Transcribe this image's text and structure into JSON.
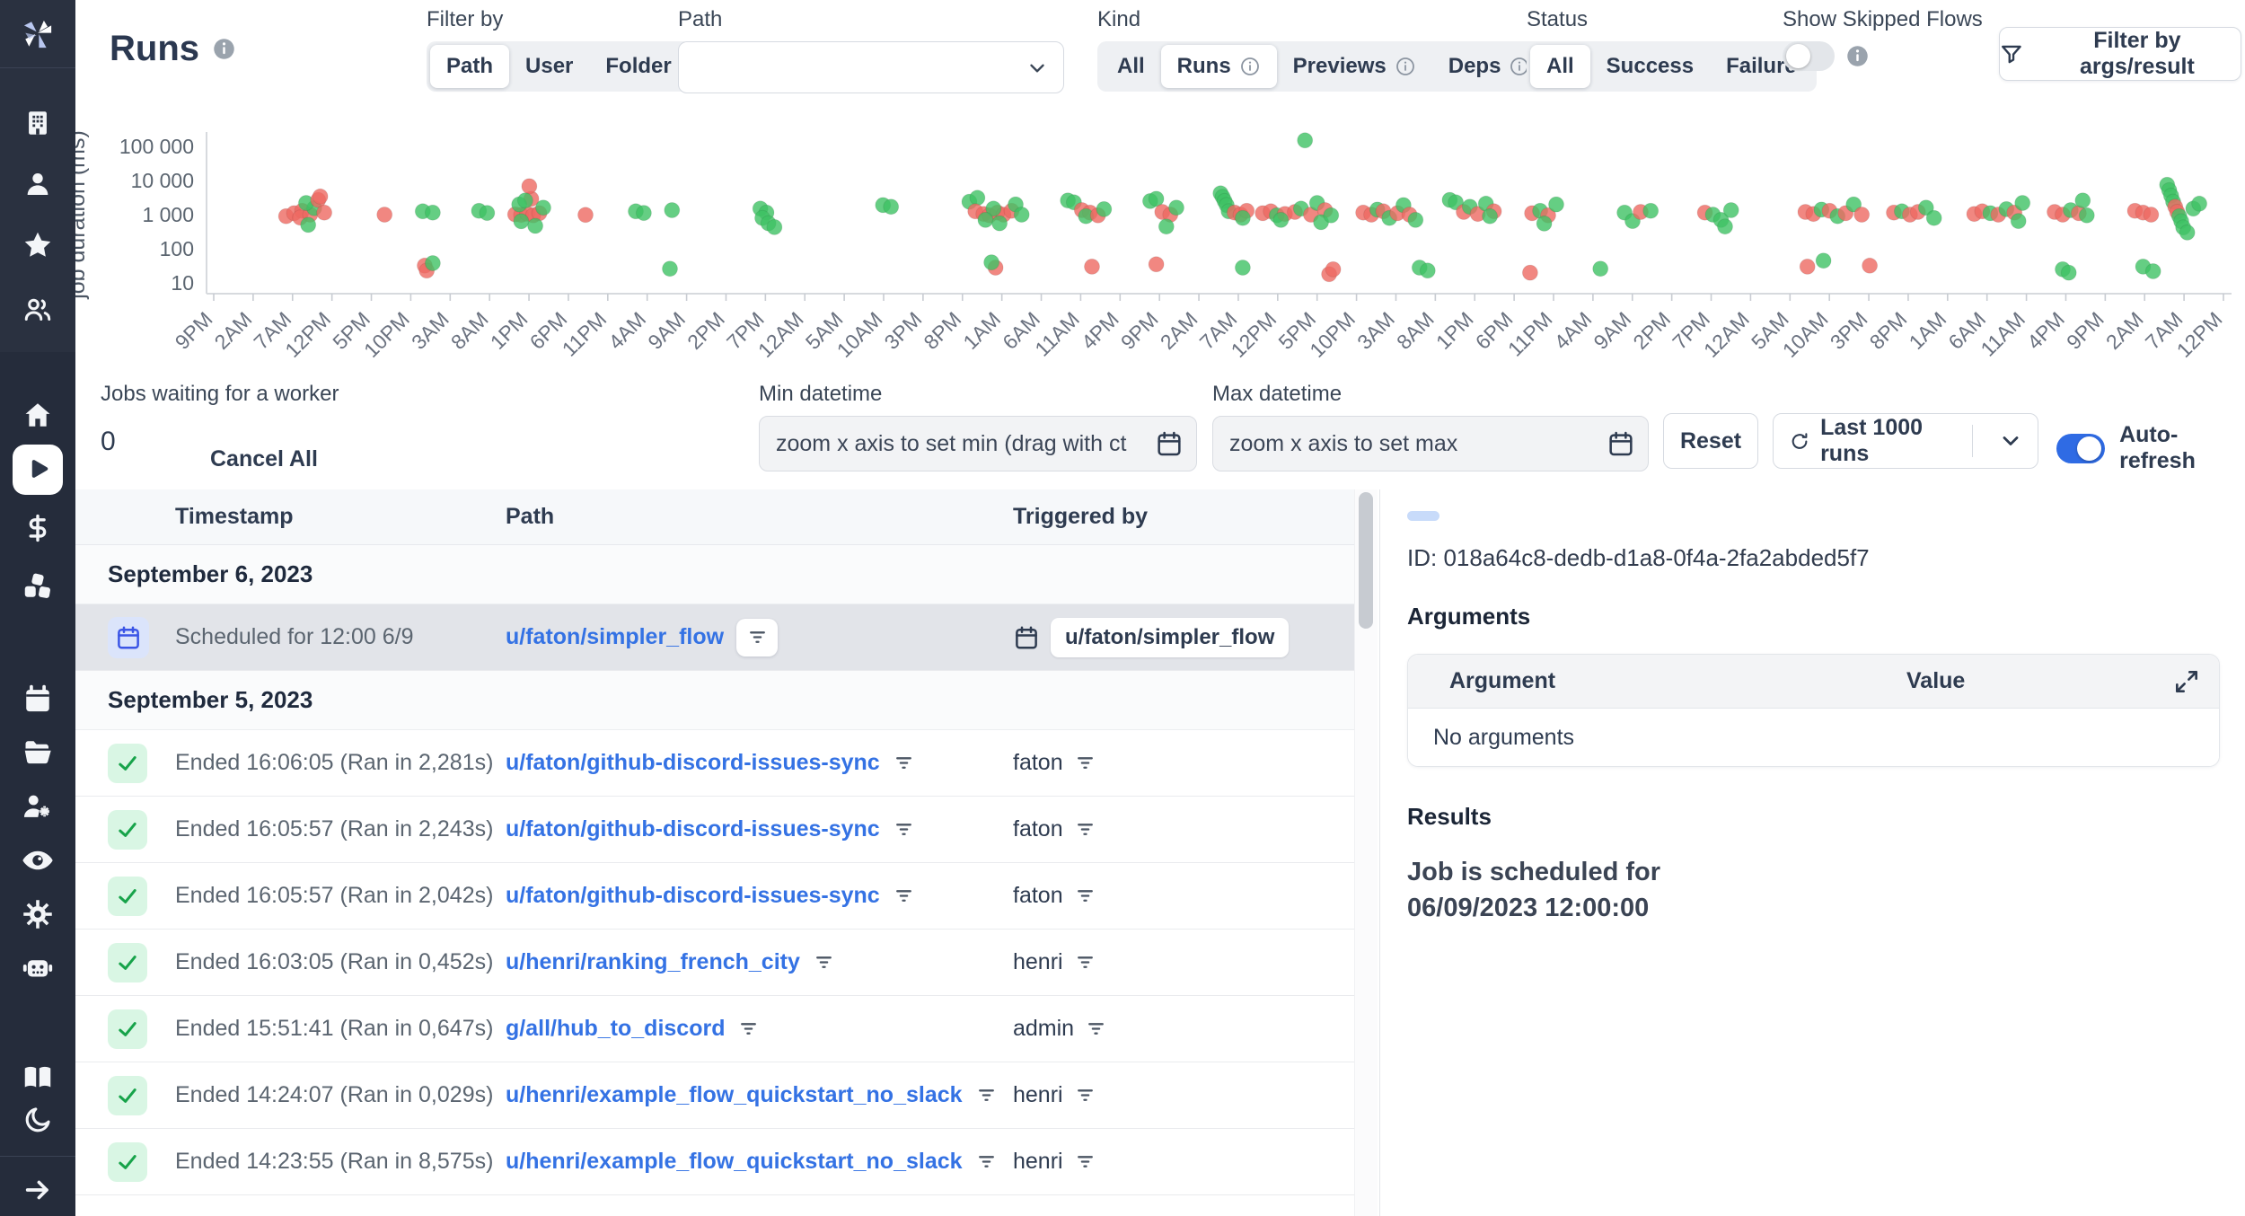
{
  "header": {
    "title": "Runs",
    "filter_by": {
      "label": "Filter by",
      "options": [
        "Path",
        "User",
        "Folder"
      ],
      "selected": "Path"
    },
    "path_filter": {
      "label": "Path",
      "value": ""
    },
    "kind": {
      "label": "Kind",
      "options": [
        "All",
        "Runs",
        "Previews",
        "Deps"
      ],
      "selected": "Runs",
      "options_with_info": [
        "Runs",
        "Previews",
        "Deps"
      ]
    },
    "status": {
      "label": "Status",
      "options": [
        "All",
        "Success",
        "Failure"
      ],
      "selected": "All"
    },
    "skipped": {
      "label": "Show Skipped Flows",
      "enabled": false
    },
    "filter_args_label": "Filter by args/result"
  },
  "queue": {
    "label": "Jobs waiting for a worker",
    "count": "0",
    "cancel_all_label": "Cancel All"
  },
  "controls": {
    "min_label": "Min datetime",
    "min_value": "zoom x axis to set min (drag with ct",
    "max_label": "Max datetime",
    "max_value": "zoom x axis to set max",
    "reset_label": "Reset",
    "last_runs_label": "Last 1000 runs",
    "auto_refresh_label": "Auto-refresh"
  },
  "chart_data": {
    "type": "scatter",
    "ylabel": "job duration (ms)",
    "yscale": "log",
    "ytick_labels": [
      "10",
      "100",
      "1 000",
      "10 000",
      "100 000"
    ],
    "ytick_values": [
      10,
      100,
      1000,
      10000,
      100000
    ],
    "ylim": [
      10,
      200000
    ],
    "grid": false,
    "legend": "none",
    "series": [
      {
        "name": "success",
        "color": "#3fc264"
      },
      {
        "name": "failure",
        "color": "#ee6962"
      }
    ],
    "x_labels": [
      "9PM",
      "2AM",
      "7AM",
      "12PM",
      "5PM",
      "10PM",
      "3AM",
      "8AM",
      "1PM",
      "6PM",
      "11PM",
      "4AM",
      "9AM",
      "2PM",
      "7PM",
      "12AM",
      "5AM",
      "10AM",
      "3PM",
      "8PM",
      "1AM",
      "6AM",
      "11AM",
      "4PM",
      "9PM",
      "2AM",
      "7AM",
      "12PM",
      "5PM",
      "10PM",
      "3AM",
      "8AM",
      "1PM",
      "6PM",
      "11PM",
      "4AM",
      "9AM",
      "2PM",
      "7PM",
      "12AM",
      "5AM",
      "10AM",
      "3PM",
      "8PM",
      "1AM",
      "6AM",
      "11AM",
      "4PM",
      "9PM",
      "2AM",
      "7AM",
      "12PM"
    ],
    "points": [
      [
        0.036,
        900,
        "f"
      ],
      [
        0.04,
        1100,
        "f"
      ],
      [
        0.044,
        1300,
        "f"
      ],
      [
        0.043,
        820,
        "f"
      ],
      [
        0.048,
        1000,
        "f"
      ],
      [
        0.05,
        1550,
        "s"
      ],
      [
        0.046,
        2200,
        "s"
      ],
      [
        0.052,
        2700,
        "f"
      ],
      [
        0.055,
        1150,
        "f"
      ],
      [
        0.047,
        500,
        "s"
      ],
      [
        0.053,
        3400,
        "f"
      ],
      [
        0.085,
        1000,
        "f"
      ],
      [
        0.104,
        1250,
        "s"
      ],
      [
        0.109,
        1150,
        "s"
      ],
      [
        0.105,
        32,
        "f"
      ],
      [
        0.106,
        23,
        "f"
      ],
      [
        0.109,
        38,
        "s"
      ],
      [
        0.132,
        1300,
        "s"
      ],
      [
        0.136,
        1120,
        "s"
      ],
      [
        0.15,
        1020,
        "f"
      ],
      [
        0.153,
        980,
        "f"
      ],
      [
        0.156,
        1060,
        "f"
      ],
      [
        0.159,
        950,
        "f"
      ],
      [
        0.162,
        1100,
        "f"
      ],
      [
        0.158,
        2900,
        "f"
      ],
      [
        0.157,
        6800,
        "f"
      ],
      [
        0.152,
        2000,
        "s"
      ],
      [
        0.155,
        2600,
        "s"
      ],
      [
        0.164,
        1600,
        "s"
      ],
      [
        0.153,
        640,
        "s"
      ],
      [
        0.16,
        470,
        "s"
      ],
      [
        0.185,
        980,
        "f"
      ],
      [
        0.21,
        1250,
        "s"
      ],
      [
        0.214,
        1120,
        "s"
      ],
      [
        0.228,
        1350,
        "s"
      ],
      [
        0.227,
        26,
        "s"
      ],
      [
        0.272,
        1500,
        "s"
      ],
      [
        0.275,
        1150,
        "s"
      ],
      [
        0.273,
        800,
        "s"
      ],
      [
        0.276,
        560,
        "s"
      ],
      [
        0.279,
        430,
        "s"
      ],
      [
        0.333,
        1900,
        "s"
      ],
      [
        0.337,
        1700,
        "s"
      ],
      [
        0.376,
        2400,
        "s"
      ],
      [
        0.38,
        3100,
        "s"
      ],
      [
        0.379,
        1250,
        "f"
      ],
      [
        0.383,
        1050,
        "f"
      ],
      [
        0.386,
        950,
        "f"
      ],
      [
        0.39,
        1150,
        "f"
      ],
      [
        0.393,
        1000,
        "f"
      ],
      [
        0.388,
        1500,
        "s"
      ],
      [
        0.384,
        700,
        "s"
      ],
      [
        0.391,
        560,
        "s"
      ],
      [
        0.397,
        1300,
        "f"
      ],
      [
        0.399,
        2000,
        "s"
      ],
      [
        0.402,
        1000,
        "s"
      ],
      [
        0.389,
        28,
        "f"
      ],
      [
        0.387,
        40,
        "s"
      ],
      [
        0.425,
        2600,
        "s"
      ],
      [
        0.428,
        2300,
        "s"
      ],
      [
        0.432,
        1350,
        "f"
      ],
      [
        0.436,
        1150,
        "f"
      ],
      [
        0.434,
        900,
        "s"
      ],
      [
        0.44,
        950,
        "f"
      ],
      [
        0.443,
        1450,
        "s"
      ],
      [
        0.437,
        30,
        "f"
      ],
      [
        0.466,
        2500,
        "s"
      ],
      [
        0.469,
        2900,
        "s"
      ],
      [
        0.472,
        1200,
        "f"
      ],
      [
        0.476,
        1000,
        "f"
      ],
      [
        0.479,
        1600,
        "s"
      ],
      [
        0.474,
        450,
        "s"
      ],
      [
        0.469,
        35,
        "f"
      ],
      [
        0.501,
        4200,
        "s"
      ],
      [
        0.502,
        3300,
        "s"
      ],
      [
        0.503,
        2500,
        "s"
      ],
      [
        0.504,
        1900,
        "s"
      ],
      [
        0.505,
        1250,
        "s"
      ],
      [
        0.508,
        1150,
        "f"
      ],
      [
        0.511,
        1000,
        "f"
      ],
      [
        0.514,
        1300,
        "f"
      ],
      [
        0.512,
        800,
        "s"
      ],
      [
        0.512,
        28,
        "s"
      ],
      [
        0.522,
        1100,
        "f"
      ],
      [
        0.526,
        1250,
        "f"
      ],
      [
        0.529,
        950,
        "s"
      ],
      [
        0.533,
        1050,
        "f"
      ],
      [
        0.531,
        700,
        "s"
      ],
      [
        0.538,
        1200,
        "f"
      ],
      [
        0.541,
        1500,
        "s"
      ],
      [
        0.543,
        150000,
        "s"
      ],
      [
        0.546,
        1000,
        "f"
      ],
      [
        0.549,
        2200,
        "s"
      ],
      [
        0.553,
        1350,
        "f"
      ],
      [
        0.551,
        600,
        "s"
      ],
      [
        0.556,
        950,
        "s"
      ],
      [
        0.555,
        18,
        "f"
      ],
      [
        0.557,
        25,
        "f"
      ],
      [
        0.572,
        1150,
        "f"
      ],
      [
        0.576,
        1000,
        "f"
      ],
      [
        0.579,
        1400,
        "s"
      ],
      [
        0.582,
        1250,
        "f"
      ],
      [
        0.585,
        800,
        "s"
      ],
      [
        0.589,
        1100,
        "f"
      ],
      [
        0.592,
        1900,
        "s"
      ],
      [
        0.595,
        1000,
        "f"
      ],
      [
        0.598,
        700,
        "s"
      ],
      [
        0.6,
        28,
        "s"
      ],
      [
        0.604,
        23,
        "s"
      ],
      [
        0.615,
        2700,
        "s"
      ],
      [
        0.618,
        2300,
        "s"
      ],
      [
        0.622,
        1200,
        "f"
      ],
      [
        0.625,
        1700,
        "s"
      ],
      [
        0.629,
        1050,
        "f"
      ],
      [
        0.633,
        2100,
        "s"
      ],
      [
        0.637,
        1250,
        "f"
      ],
      [
        0.635,
        900,
        "s"
      ],
      [
        0.656,
        1100,
        "f"
      ],
      [
        0.66,
        1300,
        "s"
      ],
      [
        0.664,
        950,
        "f"
      ],
      [
        0.662,
        550,
        "s"
      ],
      [
        0.668,
        2000,
        "s"
      ],
      [
        0.655,
        20,
        "f"
      ],
      [
        0.702,
        1150,
        "s"
      ],
      [
        0.706,
        650,
        "s"
      ],
      [
        0.71,
        1200,
        "f"
      ],
      [
        0.715,
        1300,
        "s"
      ],
      [
        0.69,
        26,
        "s"
      ],
      [
        0.742,
        1150,
        "f"
      ],
      [
        0.746,
        1000,
        "s"
      ],
      [
        0.75,
        700,
        "s"
      ],
      [
        0.755,
        1350,
        "s"
      ],
      [
        0.752,
        450,
        "s"
      ],
      [
        0.792,
        1200,
        "f"
      ],
      [
        0.796,
        1050,
        "f"
      ],
      [
        0.8,
        1400,
        "s"
      ],
      [
        0.804,
        1300,
        "f"
      ],
      [
        0.808,
        900,
        "s"
      ],
      [
        0.812,
        1100,
        "f"
      ],
      [
        0.816,
        2000,
        "s"
      ],
      [
        0.82,
        1000,
        "f"
      ],
      [
        0.793,
        30,
        "f"
      ],
      [
        0.801,
        45,
        "s"
      ],
      [
        0.836,
        1150,
        "f"
      ],
      [
        0.84,
        1250,
        "s"
      ],
      [
        0.844,
        1000,
        "f"
      ],
      [
        0.848,
        1200,
        "f"
      ],
      [
        0.852,
        1600,
        "s"
      ],
      [
        0.856,
        800,
        "s"
      ],
      [
        0.824,
        32,
        "f"
      ],
      [
        0.876,
        1050,
        "f"
      ],
      [
        0.88,
        1250,
        "f"
      ],
      [
        0.884,
        1100,
        "s"
      ],
      [
        0.888,
        1000,
        "f"
      ],
      [
        0.892,
        1450,
        "s"
      ],
      [
        0.896,
        1150,
        "f"
      ],
      [
        0.9,
        2200,
        "s"
      ],
      [
        0.898,
        650,
        "s"
      ],
      [
        0.916,
        1200,
        "f"
      ],
      [
        0.92,
        1000,
        "f"
      ],
      [
        0.924,
        1350,
        "s"
      ],
      [
        0.928,
        1100,
        "f"
      ],
      [
        0.932,
        950,
        "s"
      ],
      [
        0.93,
        2600,
        "s"
      ],
      [
        0.92,
        25,
        "s"
      ],
      [
        0.923,
        20,
        "s"
      ],
      [
        0.956,
        1300,
        "f"
      ],
      [
        0.96,
        1150,
        "f"
      ],
      [
        0.964,
        1000,
        "f"
      ],
      [
        0.972,
        7500,
        "s"
      ],
      [
        0.973,
        5200,
        "s"
      ],
      [
        0.974,
        3600,
        "s"
      ],
      [
        0.975,
        2400,
        "s"
      ],
      [
        0.976,
        1700,
        "f"
      ],
      [
        0.977,
        1200,
        "f"
      ],
      [
        0.978,
        900,
        "s"
      ],
      [
        0.979,
        640,
        "s"
      ],
      [
        0.98,
        420,
        "s"
      ],
      [
        0.982,
        300,
        "s"
      ],
      [
        0.985,
        1500,
        "s"
      ],
      [
        0.988,
        2100,
        "s"
      ],
      [
        0.96,
        30,
        "s"
      ],
      [
        0.965,
        22,
        "s"
      ]
    ]
  },
  "table": {
    "columns": [
      "Timestamp",
      "Path",
      "Triggered by"
    ],
    "groups": [
      {
        "date": "September 6, 2023",
        "rows": [
          {
            "kind": "scheduled",
            "selected": true,
            "timestamp": "Scheduled for 12:00 6/9",
            "path": "u/faton/simpler_flow",
            "triggered_by": "u/faton/simpler_flow"
          }
        ]
      },
      {
        "date": "September 5, 2023",
        "rows": [
          {
            "kind": "success",
            "selected": false,
            "timestamp": "Ended 16:06:05 (Ran in 2,281s)",
            "path": "u/faton/github-discord-issues-sync",
            "triggered_by": "faton"
          },
          {
            "kind": "success",
            "selected": false,
            "timestamp": "Ended 16:05:57 (Ran in 2,243s)",
            "path": "u/faton/github-discord-issues-sync",
            "triggered_by": "faton"
          },
          {
            "kind": "success",
            "selected": false,
            "timestamp": "Ended 16:05:57 (Ran in 2,042s)",
            "path": "u/faton/github-discord-issues-sync",
            "triggered_by": "faton"
          },
          {
            "kind": "success",
            "selected": false,
            "timestamp": "Ended 16:03:05 (Ran in 0,452s)",
            "path": "u/henri/ranking_french_city",
            "triggered_by": "henri"
          },
          {
            "kind": "success",
            "selected": false,
            "timestamp": "Ended 15:51:41 (Ran in 0,647s)",
            "path": "g/all/hub_to_discord",
            "triggered_by": "admin"
          },
          {
            "kind": "success",
            "selected": false,
            "timestamp": "Ended 14:24:07 (Ran in 0,029s)",
            "path": "u/henri/example_flow_quickstart_no_slack",
            "triggered_by": "henri"
          },
          {
            "kind": "success",
            "selected": false,
            "timestamp": "Ended 14:23:55 (Ran in 8,575s)",
            "path": "u/henri/example_flow_quickstart_no_slack",
            "triggered_by": "henri"
          }
        ]
      }
    ]
  },
  "detail": {
    "id_text": "ID: 018a64c8-dedb-d1a8-0f4a-2fa2abded5f7",
    "arguments_title": "Arguments",
    "args_table": {
      "col_argument": "Argument",
      "col_value": "Value",
      "empty_text": "No arguments"
    },
    "results_title": "Results",
    "result_line1": "Job is scheduled for",
    "result_line2": "06/09/2023 12:00:00"
  },
  "colors": {
    "sidebar_bg": "#252c3b",
    "success_dot": "#3fc264",
    "failure_dot": "#ee6962",
    "accent_blue": "#2f6be4",
    "link_blue": "#3472e4",
    "selected_row_bg": "#e2e4e9"
  }
}
